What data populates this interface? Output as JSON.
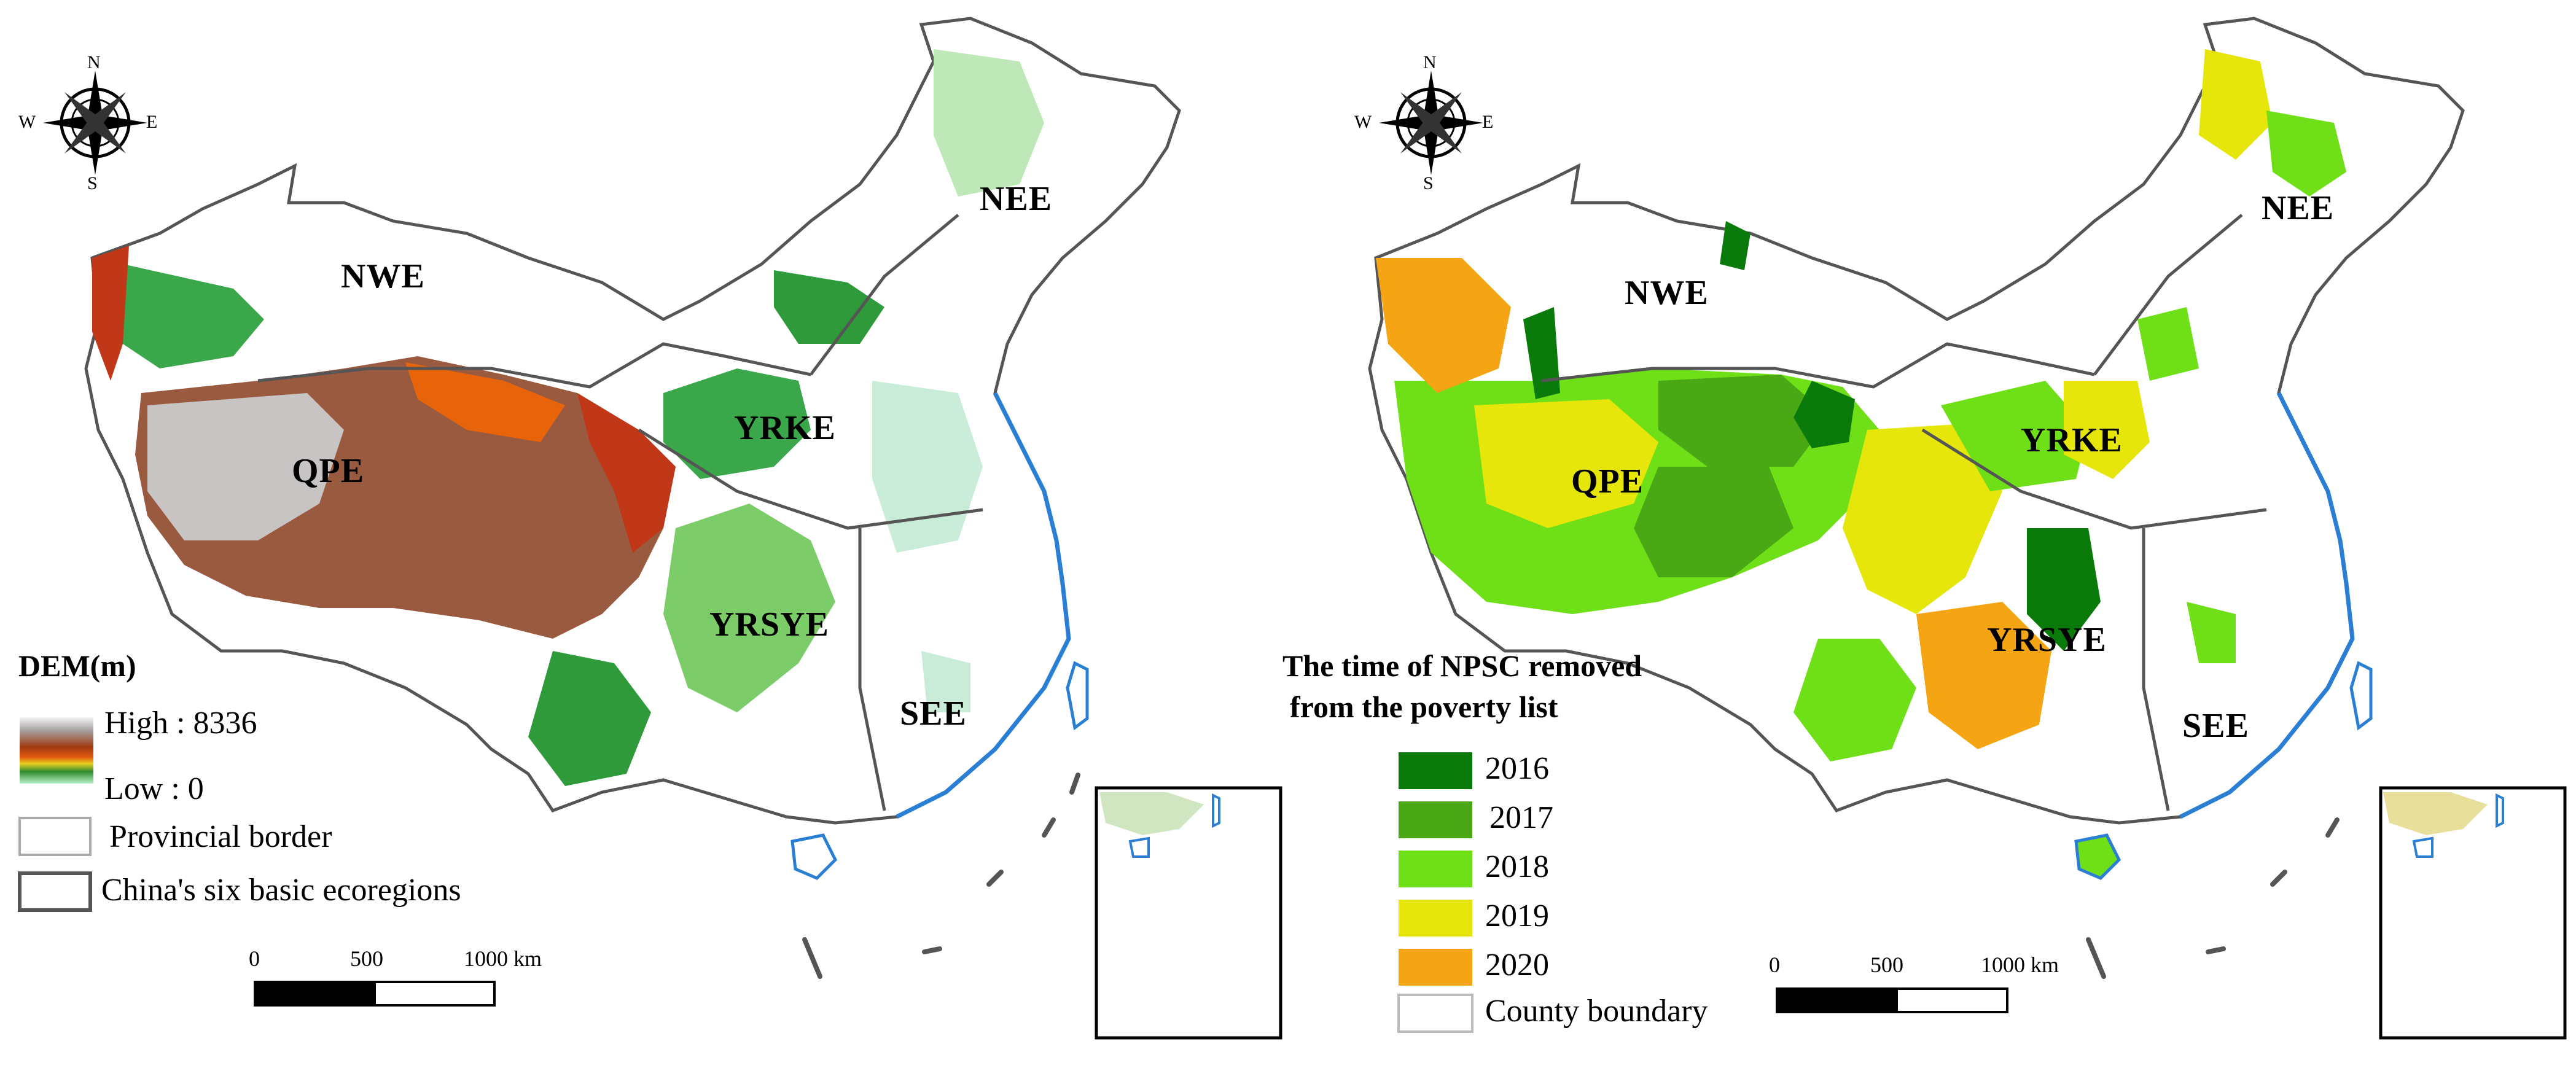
{
  "left_panel": {
    "compass": {
      "n": "N",
      "s": "S",
      "e": "E",
      "w": "W"
    },
    "regions": {
      "nwe": "NWE",
      "nee": "NEE",
      "qpe": "QPE",
      "yrke": "YRKE",
      "yrsye": "YRSYE",
      "see": "SEE"
    },
    "legend": {
      "title": "DEM(m)",
      "high": "High : 8336",
      "low": "Low : 0",
      "provincial": "Provincial border",
      "ecoregions": "China's six basic ecoregions"
    },
    "scale": {
      "t0": "0",
      "t1": "500",
      "t2": "1000 km"
    },
    "colors": {
      "high": "#a03a10",
      "mid": "#2e8b2e",
      "low": "#9ee6b8",
      "snow": "#c8c8c8",
      "land": "#ffffff",
      "border": "#555555",
      "coast": "#2a7fd4"
    }
  },
  "right_panel": {
    "compass": {
      "n": "N",
      "s": "S",
      "e": "E",
      "w": "W"
    },
    "regions": {
      "nwe": "NWE",
      "nee": "NEE",
      "qpe": "QPE",
      "yrke": "YRKE",
      "yrsye": "YRSYE",
      "see": "SEE"
    },
    "legend": {
      "title_line1": "The time of NPSC removed",
      "title_line2": "from the poverty list",
      "items": [
        {
          "label": "2016",
          "color": "#0a7a0a"
        },
        {
          "label": "2017",
          "color": "#4aa814"
        },
        {
          "label": "2018",
          "color": "#6fe018"
        },
        {
          "label": "2019",
          "color": "#e6e60a"
        },
        {
          "label": "2020",
          "color": "#f5a514"
        }
      ],
      "county": "County boundary"
    },
    "scale": {
      "t0": "0",
      "t1": "500",
      "t2": "1000 km"
    }
  }
}
